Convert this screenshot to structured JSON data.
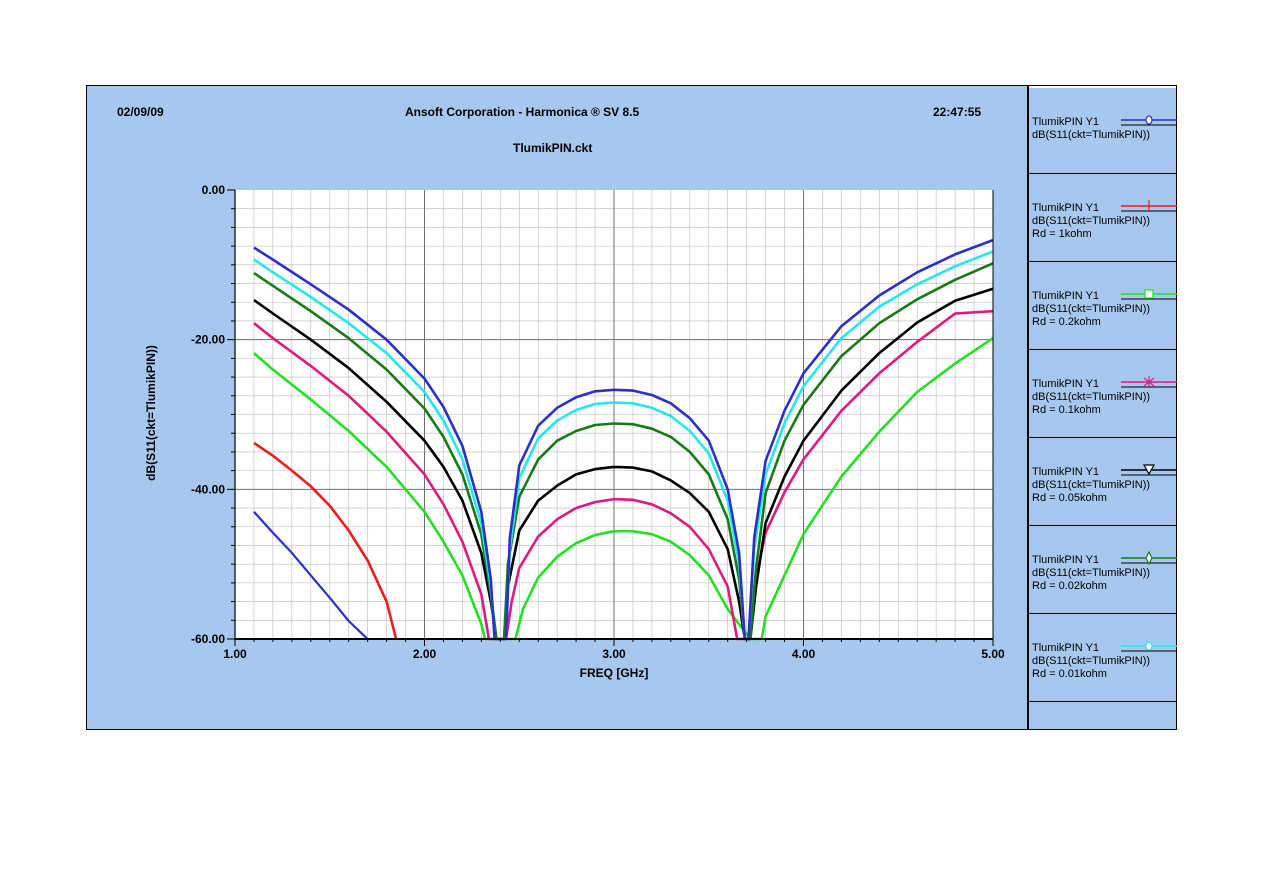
{
  "header": {
    "date": "02/09/09",
    "company": "Ansoft Corporation - Harmonica ® SV 8.5",
    "time": "22:47:55",
    "file": "TlumikPIN.ckt"
  },
  "legend": [
    {
      "name": "TlumikPIN  Y1",
      "expr": "dB(S11(ckt=TlumikPIN))",
      "param": "",
      "color": "#2c2fc8",
      "marker": "circle"
    },
    {
      "name": "TlumikPIN  Y1",
      "expr": "dB(S11(ckt=TlumikPIN))",
      "param": "Rd = 1kohm",
      "color": "#ee1c1c",
      "marker": "cross"
    },
    {
      "name": "TlumikPIN  Y1",
      "expr": "dB(S11(ckt=TlumikPIN))",
      "param": "Rd = 0.2kohm",
      "color": "#22e022",
      "marker": "square"
    },
    {
      "name": "TlumikPIN  Y1",
      "expr": "dB(S11(ckt=TlumikPIN))",
      "param": "Rd = 0.1kohm",
      "color": "#e0197d",
      "marker": "star"
    },
    {
      "name": "TlumikPIN  Y1",
      "expr": "dB(S11(ckt=TlumikPIN))",
      "param": "Rd = 0.05kohm",
      "color": "#000000",
      "marker": "triangle-down"
    },
    {
      "name": "TlumikPIN  Y1",
      "expr": "dB(S11(ckt=TlumikPIN))",
      "param": "Rd = 0.02kohm",
      "color": "#167a16",
      "marker": "diamond"
    },
    {
      "name": "TlumikPIN  Y1",
      "expr": "dB(S11(ckt=TlumikPIN))",
      "param": "Rd = 0.01kohm",
      "color": "#22e8ee",
      "marker": "circle"
    }
  ],
  "chart_data": {
    "type": "line",
    "xlabel": "FREQ [GHz]",
    "ylabel": "dB(S11(ckt=TlumikPIN))",
    "xlim": [
      1.0,
      5.0
    ],
    "ylim": [
      -60.0,
      0.0
    ],
    "x_ticks": [
      "1.00",
      "2.00",
      "3.00",
      "4.00",
      "5.00"
    ],
    "y_ticks": [
      "0.00",
      "-20.00",
      "-40.00",
      "-60.00"
    ],
    "grid": true,
    "series": [
      {
        "color": "#2c2fc8",
        "lw": 2.2,
        "x": [
          1.1,
          1.2,
          1.3,
          1.4,
          1.5,
          1.6,
          1.7
        ],
        "y": [
          -43.0,
          -45.8,
          -48.5,
          -51.5,
          -54.5,
          -57.6,
          -60.0
        ]
      },
      {
        "color": "#ee1c1c",
        "lw": 2.6,
        "x": [
          1.1,
          1.2,
          1.3,
          1.4,
          1.5,
          1.6,
          1.7,
          1.8,
          1.85
        ],
        "y": [
          -33.8,
          -35.5,
          -37.5,
          -39.6,
          -42.2,
          -45.5,
          -49.5,
          -55.0,
          -60.0
        ]
      },
      {
        "color": "#22e022",
        "lw": 2.6,
        "x": [
          1.1,
          1.2,
          1.4,
          1.6,
          1.8,
          2.0,
          2.1,
          2.2,
          2.3,
          2.32,
          2.36,
          2.48,
          2.52,
          2.6,
          2.7,
          2.8,
          2.9,
          3.0,
          3.1,
          3.2,
          3.3,
          3.4,
          3.5,
          3.6,
          3.72,
          3.78,
          3.8,
          3.9,
          4.0,
          4.2,
          4.4,
          4.6,
          4.8,
          5.0
        ],
        "y": [
          -21.8,
          -24.0,
          -28.0,
          -32.2,
          -37.0,
          -43.0,
          -47.0,
          -51.5,
          -58.0,
          -60.0,
          -60.0,
          -60.0,
          -56.0,
          -51.8,
          -49.0,
          -47.2,
          -46.1,
          -45.6,
          -45.6,
          -46.0,
          -47.0,
          -48.8,
          -51.5,
          -56.0,
          -60.0,
          -60.0,
          -57.0,
          -51.5,
          -46.0,
          -38.3,
          -32.3,
          -27.0,
          -23.2,
          -19.8
        ]
      },
      {
        "color": "#e0197d",
        "lw": 2.6,
        "x": [
          1.1,
          1.2,
          1.4,
          1.6,
          1.8,
          2.0,
          2.1,
          2.2,
          2.3,
          2.34,
          2.37,
          2.43,
          2.46,
          2.5,
          2.6,
          2.7,
          2.8,
          2.9,
          3.0,
          3.1,
          3.2,
          3.3,
          3.4,
          3.5,
          3.6,
          3.65,
          3.68,
          3.71,
          3.74,
          3.8,
          3.9,
          4.0,
          4.2,
          4.4,
          4.6,
          4.8,
          5.0
        ],
        "y": [
          -17.8,
          -19.8,
          -23.5,
          -27.5,
          -32.3,
          -38.0,
          -42.0,
          -47.0,
          -54.0,
          -60.0,
          -60.0,
          -60.0,
          -55.0,
          -50.5,
          -46.3,
          -44.0,
          -42.5,
          -41.7,
          -41.3,
          -41.4,
          -42.0,
          -43.2,
          -45.0,
          -48.0,
          -53.0,
          -60.0,
          -60.0,
          -60.0,
          -53.0,
          -45.8,
          -40.4,
          -36.0,
          -29.5,
          -24.5,
          -20.3,
          -16.5,
          -16.2
        ]
      },
      {
        "color": "#000000",
        "lw": 2.6,
        "x": [
          1.1,
          1.2,
          1.4,
          1.6,
          1.8,
          2.0,
          2.1,
          2.2,
          2.3,
          2.35,
          2.38,
          2.42,
          2.44,
          2.5,
          2.6,
          2.7,
          2.8,
          2.9,
          3.0,
          3.1,
          3.2,
          3.3,
          3.4,
          3.5,
          3.6,
          3.66,
          3.69,
          3.72,
          3.75,
          3.8,
          3.9,
          4.0,
          4.2,
          4.4,
          4.6,
          4.8,
          5.0
        ],
        "y": [
          -14.7,
          -16.5,
          -20.0,
          -23.8,
          -28.3,
          -33.5,
          -37.0,
          -41.5,
          -48.5,
          -55.0,
          -60.0,
          -60.0,
          -53.0,
          -45.5,
          -41.5,
          -39.5,
          -38.0,
          -37.3,
          -37.0,
          -37.1,
          -37.6,
          -38.8,
          -40.5,
          -43.0,
          -48.0,
          -55.0,
          -60.0,
          -60.0,
          -53.0,
          -44.5,
          -38.3,
          -33.5,
          -26.8,
          -21.8,
          -17.7,
          -14.8,
          -13.2
        ]
      },
      {
        "color": "#167a16",
        "lw": 2.6,
        "x": [
          1.1,
          1.2,
          1.4,
          1.6,
          1.8,
          2.0,
          2.1,
          2.2,
          2.3,
          2.35,
          2.38,
          2.42,
          2.44,
          2.5,
          2.6,
          2.7,
          2.8,
          2.9,
          3.0,
          3.1,
          3.2,
          3.3,
          3.4,
          3.5,
          3.6,
          3.66,
          3.69,
          3.72,
          3.75,
          3.8,
          3.9,
          4.0,
          4.2,
          4.4,
          4.6,
          4.8,
          5.0
        ],
        "y": [
          -11.1,
          -12.8,
          -16.2,
          -19.8,
          -24.0,
          -29.2,
          -33.0,
          -38.0,
          -46.0,
          -54.0,
          -60.0,
          -60.0,
          -50.0,
          -41.0,
          -36.0,
          -33.5,
          -32.2,
          -31.4,
          -31.2,
          -31.3,
          -31.9,
          -33.0,
          -35.0,
          -38.0,
          -44.0,
          -52.0,
          -60.0,
          -60.0,
          -50.5,
          -40.5,
          -33.5,
          -28.7,
          -22.2,
          -17.8,
          -14.6,
          -12.0,
          -9.8
        ]
      },
      {
        "color": "#22e8ee",
        "lw": 2.6,
        "x": [
          1.1,
          1.2,
          1.4,
          1.6,
          1.8,
          2.0,
          2.1,
          2.2,
          2.3,
          2.35,
          2.37,
          2.43,
          2.45,
          2.5,
          2.6,
          2.7,
          2.8,
          2.9,
          3.0,
          3.1,
          3.2,
          3.3,
          3.4,
          3.5,
          3.6,
          3.66,
          3.69,
          3.71,
          3.74,
          3.8,
          3.9,
          4.0,
          4.2,
          4.4,
          4.6,
          4.8,
          5.0
        ],
        "y": [
          -9.3,
          -11.0,
          -14.3,
          -17.8,
          -21.8,
          -27.0,
          -30.8,
          -36.0,
          -44.5,
          -53.0,
          -60.0,
          -60.0,
          -48.0,
          -38.5,
          -33.2,
          -30.8,
          -29.4,
          -28.6,
          -28.4,
          -28.5,
          -29.1,
          -30.2,
          -32.2,
          -35.2,
          -41.5,
          -50.0,
          -60.0,
          -60.0,
          -48.0,
          -38.0,
          -31.2,
          -26.2,
          -19.8,
          -15.6,
          -12.6,
          -10.2,
          -8.2
        ]
      },
      {
        "color": "#2c2fc8",
        "lw": 2.6,
        "x": [
          1.1,
          1.2,
          1.4,
          1.6,
          1.8,
          2.0,
          2.1,
          2.2,
          2.3,
          2.35,
          2.37,
          2.43,
          2.45,
          2.5,
          2.6,
          2.7,
          2.8,
          2.9,
          3.0,
          3.1,
          3.2,
          3.3,
          3.4,
          3.5,
          3.6,
          3.66,
          3.69,
          3.71,
          3.74,
          3.8,
          3.9,
          4.0,
          4.2,
          4.4,
          4.6,
          4.8,
          5.0
        ],
        "y": [
          -7.7,
          -9.3,
          -12.6,
          -16.0,
          -20.0,
          -25.2,
          -29.0,
          -34.2,
          -43.0,
          -52.0,
          -60.0,
          -60.0,
          -46.5,
          -36.8,
          -31.5,
          -29.1,
          -27.7,
          -26.9,
          -26.7,
          -26.8,
          -27.4,
          -28.5,
          -30.5,
          -33.5,
          -40.0,
          -48.5,
          -60.0,
          -60.0,
          -46.5,
          -36.2,
          -29.5,
          -24.5,
          -18.2,
          -14.1,
          -11.0,
          -8.6,
          -6.7
        ]
      }
    ]
  }
}
